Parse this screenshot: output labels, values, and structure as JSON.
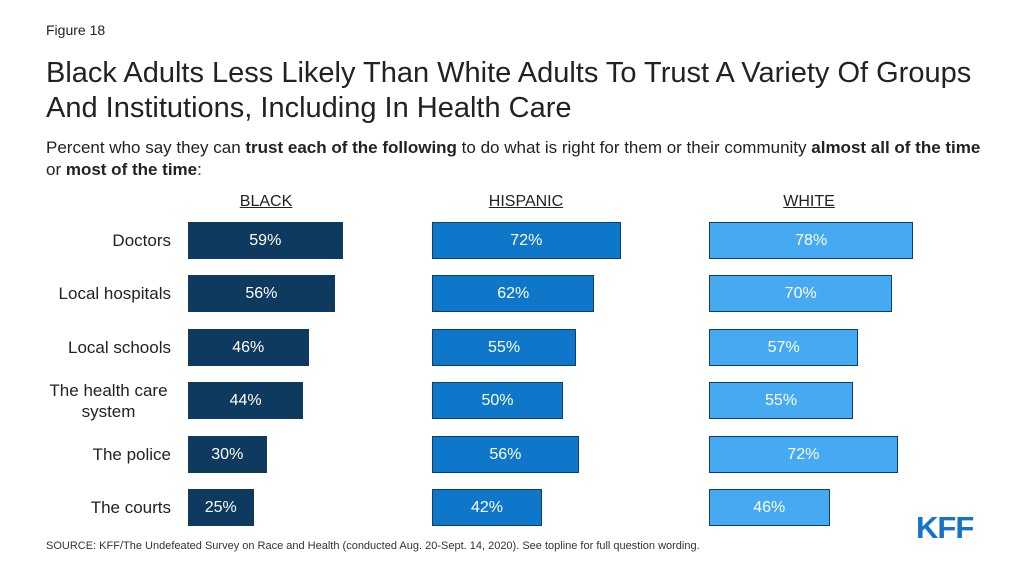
{
  "figure_label": "Figure 18",
  "title": "Black Adults Less Likely Than White Adults To Trust A Variety Of Groups And Institutions, Including In Health Care",
  "subtitle": {
    "p1": "Percent who say they can ",
    "b1": "trust each of the following",
    "p2": " to do what is right for them or their community ",
    "b2": "almost all of the time",
    "p3": " or ",
    "b3": "most of the time",
    "p4": ":"
  },
  "source": "SOURCE: KFF/The Undefeated Survey on Race and Health (conducted Aug. 20-Sept. 14, 2020). See topline for full question wording.",
  "logo": "KFF",
  "colors": {
    "black": "#0e3a5f",
    "hispanic": "#0f77c9",
    "white": "#45aaf2"
  },
  "chart_data": {
    "type": "bar",
    "orientation": "horizontal",
    "categories": [
      "Doctors",
      "Local hospitals",
      "Local schools",
      "The health care system",
      "The police",
      "The courts"
    ],
    "series": [
      {
        "name": "BLACK",
        "values": [
          59,
          56,
          46,
          44,
          30,
          25
        ],
        "labels": [
          "59%",
          "56%",
          "46%",
          "44%",
          "30%",
          "25%"
        ]
      },
      {
        "name": "HISPANIC",
        "values": [
          72,
          62,
          55,
          50,
          56,
          42
        ],
        "labels": [
          "72%",
          "62%",
          "55%",
          "50%",
          "56%",
          "42%"
        ]
      },
      {
        "name": "WHITE",
        "values": [
          78,
          70,
          57,
          55,
          72,
          46
        ],
        "labels": [
          "78%",
          "70%",
          "57%",
          "55%",
          "72%",
          "46%"
        ]
      }
    ],
    "xlim": [
      0,
      100
    ]
  }
}
